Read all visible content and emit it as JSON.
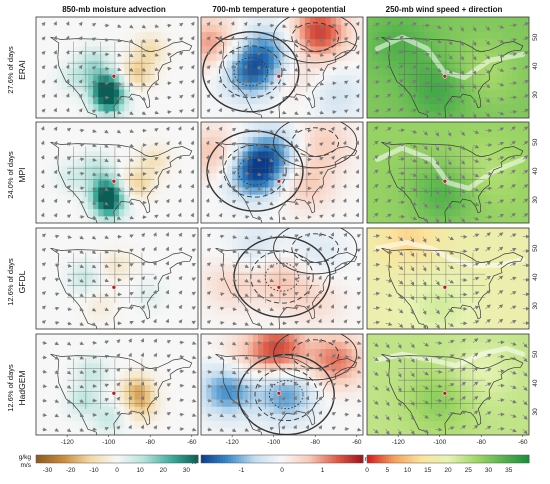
{
  "chart_data": {
    "type": "heatmap",
    "column_titles": [
      "850-mb moisture advection",
      "700-mb temperature + geopotential",
      "250-mb wind speed + direction"
    ],
    "rows": [
      {
        "model": "ERAI",
        "frequency_label": "27.6% of days"
      },
      {
        "model": "MPI",
        "frequency_label": "24.0% of days"
      },
      {
        "model": "GFDL",
        "frequency_label": "12.6% of days"
      },
      {
        "model": "HadGEM",
        "frequency_label": "12.6% of days"
      }
    ],
    "x_axis": {
      "ticks": [
        -120,
        -100,
        -80,
        -60
      ]
    },
    "y_axis": {
      "ticks": [
        30,
        40,
        50
      ]
    },
    "colorbars": [
      {
        "unit_line1": "g/kg",
        "unit_line2": "m/s",
        "ticks": [
          -30,
          -20,
          -10,
          0,
          10,
          20,
          30
        ],
        "range": [
          -35,
          35
        ],
        "colors": [
          "#8c5a1e",
          "#c98a3c",
          "#f3d9a4",
          "#f7f7f7",
          "#b5e3dc",
          "#3fae9e",
          "#0b5e55"
        ]
      },
      {
        "unit_line1": "K",
        "ticks": [
          -1,
          0,
          1
        ],
        "range": [
          -2,
          2
        ],
        "colors": [
          "#0b3c8c",
          "#3b8bc8",
          "#c6def0",
          "#f7f7f7",
          "#f8cbb8",
          "#e0604a",
          "#a1111e"
        ]
      },
      {
        "unit_line1": "m/s",
        "ticks": [
          0,
          5,
          10,
          15,
          20,
          25,
          30,
          35
        ],
        "range": [
          0,
          40
        ],
        "colors": [
          "#d7191c",
          "#f5a15a",
          "#fbe39c",
          "#e6f3b4",
          "#a6d96a",
          "#5ab54f",
          "#1a8e3c"
        ]
      }
    ],
    "panels": [
      [
        {
          "moist": [
            {
              "lon": -101,
              "lat": 33,
              "v": 32
            },
            {
              "lon": -100,
              "lat": 28,
              "v": 26
            },
            {
              "lon": -107,
              "lat": 41,
              "v": 12
            },
            {
              "lon": -86,
              "lat": 38,
              "v": -14
            },
            {
              "lon": -80,
              "lat": 46,
              "v": -10
            },
            {
              "lon": -116,
              "lat": 36,
              "v": 8
            }
          ]
        },
        {
          "temp": [
            {
              "lon": -111,
              "lat": 38,
              "v": -1.5
            },
            {
              "lon": -103,
              "lat": 46,
              "v": -1.0
            },
            {
              "lon": -130,
              "lat": 48,
              "v": 1.0
            },
            {
              "lon": -78,
              "lat": 52,
              "v": 1.6
            },
            {
              "lon": -70,
              "lat": 30,
              "v": -0.5
            },
            {
              "lon": -90,
              "lat": 36,
              "v": 0.4
            }
          ]
        },
        {
          "wind": [
            {
              "base": 30
            },
            {
              "lon": -100,
              "lat": 32,
              "v": 6
            },
            {
              "lon": -80,
              "lat": 38,
              "v": -4
            },
            {
              "lon": -120,
              "lat": 48,
              "v": 4
            }
          ],
          "jet": [
            [
              -130,
              46
            ],
            [
              -118,
              50
            ],
            [
              -106,
              46
            ],
            [
              -98,
              38
            ],
            [
              -88,
              36
            ],
            [
              -76,
              42
            ],
            [
              -60,
              44
            ]
          ]
        }
      ],
      [
        {
          "moist": [
            {
              "lon": -101,
              "lat": 33,
              "v": 30
            },
            {
              "lon": -100,
              "lat": 28,
              "v": 24
            },
            {
              "lon": -106,
              "lat": 41,
              "v": 10
            },
            {
              "lon": -86,
              "lat": 36,
              "v": -12
            },
            {
              "lon": -78,
              "lat": 44,
              "v": -8
            },
            {
              "lon": -118,
              "lat": 38,
              "v": 6
            }
          ]
        },
        {
          "temp": [
            {
              "lon": -109,
              "lat": 40,
              "v": -1.8
            },
            {
              "lon": -100,
              "lat": 47,
              "v": -1.0
            },
            {
              "lon": -128,
              "lat": 46,
              "v": 0.8
            },
            {
              "lon": -85,
              "lat": 36,
              "v": 0.7
            },
            {
              "lon": -76,
              "lat": 50,
              "v": 0.6
            }
          ]
        },
        {
          "wind": [
            {
              "base": 28
            },
            {
              "lon": -98,
              "lat": 32,
              "v": 6
            },
            {
              "lon": -78,
              "lat": 40,
              "v": -3
            }
          ],
          "jet": [
            [
              -130,
              44
            ],
            [
              -118,
              48
            ],
            [
              -104,
              44
            ],
            [
              -96,
              36
            ],
            [
              -86,
              34
            ],
            [
              -74,
              40
            ],
            [
              -60,
              44
            ]
          ]
        }
      ],
      [
        {
          "moist": [
            {
              "lon": -112,
              "lat": 40,
              "v": 8
            },
            {
              "lon": -96,
              "lat": 44,
              "v": -6
            },
            {
              "lon": -104,
              "lat": 30,
              "v": -4
            },
            {
              "lon": -80,
              "lat": 34,
              "v": 4
            }
          ]
        },
        {
          "temp": [
            {
              "lon": -96,
              "lat": 40,
              "v": 0.7
            },
            {
              "lon": -120,
              "lat": 38,
              "v": 0.5
            },
            {
              "lon": -80,
              "lat": 32,
              "v": 0.4
            },
            {
              "lon": -108,
              "lat": 50,
              "v": -0.5
            },
            {
              "lon": -80,
              "lat": 48,
              "v": -0.4
            }
          ]
        },
        {
          "wind": [
            {
              "base": 18
            },
            {
              "lon": -100,
              "lat": 30,
              "v": 4
            },
            {
              "lon": -115,
              "lat": 54,
              "v": -6
            }
          ],
          "jet": [
            [
              -130,
              50
            ],
            [
              -116,
              52
            ],
            [
              -104,
              50
            ],
            [
              -94,
              46
            ],
            [
              -84,
              44
            ],
            [
              -72,
              44
            ],
            [
              -60,
              46
            ]
          ]
        }
      ],
      [
        {
          "moist": [
            {
              "lon": -86,
              "lat": 38,
              "v": -16
            },
            {
              "lon": -84,
              "lat": 32,
              "v": -12
            },
            {
              "lon": -112,
              "lat": 34,
              "v": 10
            },
            {
              "lon": -108,
              "lat": 44,
              "v": 8
            },
            {
              "lon": -100,
              "lat": 28,
              "v": 8
            }
          ]
        },
        {
          "temp": [
            {
              "lon": -94,
              "lat": 36,
              "v": -1.2
            },
            {
              "lon": -122,
              "lat": 38,
              "v": -1.4
            },
            {
              "lon": -98,
              "lat": 52,
              "v": 1.5
            },
            {
              "lon": -70,
              "lat": 48,
              "v": 1.2
            },
            {
              "lon": -116,
              "lat": 48,
              "v": 0.5
            }
          ]
        },
        {
          "wind": [
            {
              "base": 24
            },
            {
              "lon": -100,
              "lat": 34,
              "v": 5
            },
            {
              "lon": -80,
              "lat": 44,
              "v": -4
            }
          ],
          "jet": [
            [
              -130,
              48
            ],
            [
              -118,
              50
            ],
            [
              -104,
              48
            ],
            [
              -92,
              46
            ],
            [
              -80,
              50
            ],
            [
              -68,
              52
            ],
            [
              -60,
              50
            ]
          ]
        }
      ]
    ]
  }
}
